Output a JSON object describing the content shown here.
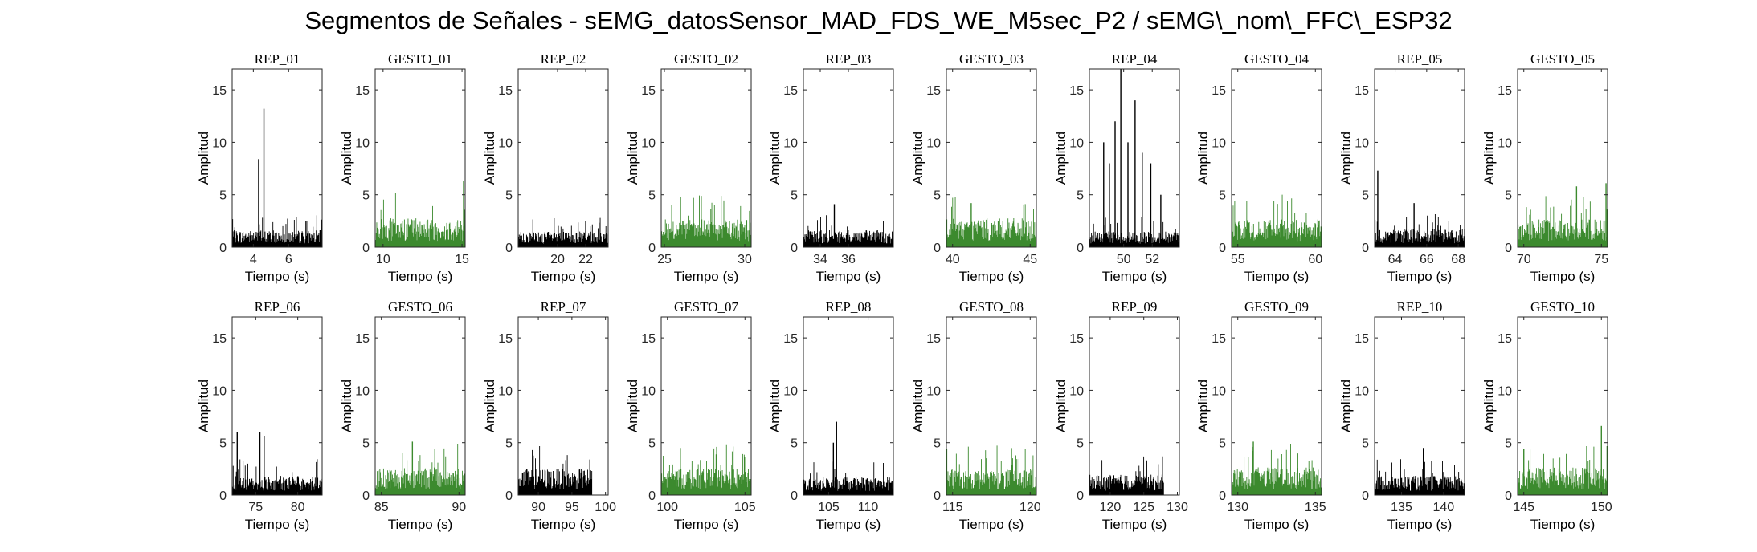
{
  "figure": {
    "title": "Segmentos de Señales - sEMG_datosSensor_MAD_FDS_WE_M5sec_P2 / sEMG\\_nom\\_FFC\\_ESP32"
  },
  "colors": {
    "rep": "#000000",
    "gesto": "#3c8a2e",
    "axis": "#262626"
  },
  "chart_data": [
    {
      "type": "bar",
      "title": "REP_01",
      "xlabel": "Tiempo (s)",
      "ylabel": "Amplitud",
      "xlim": [
        2.8,
        7.9
      ],
      "ylim": [
        0,
        17
      ],
      "xticks": [
        4,
        6
      ],
      "yticks": [
        0,
        5,
        10,
        15
      ],
      "series": [
        {
          "x": [
            2.8,
            7.9
          ],
          "values": [
            1.4,
            1.4
          ]
        }
      ],
      "peaks": [
        {
          "x": 4.3,
          "y": 8.4
        },
        {
          "x": 4.6,
          "y": 13.2
        }
      ],
      "end": 7.9,
      "kind": "rep"
    },
    {
      "type": "bar",
      "title": "GESTO_01",
      "xlabel": "Tiempo (s)",
      "ylabel": "Amplitud",
      "xlim": [
        9.5,
        15.2
      ],
      "ylim": [
        0,
        17
      ],
      "xticks": [
        10,
        15
      ],
      "yticks": [
        0,
        5,
        10,
        15
      ],
      "series": [
        {
          "x": [
            9.5,
            15.2
          ],
          "values": [
            2.4,
            2.4
          ]
        }
      ],
      "peaks": [
        {
          "x": 15.1,
          "y": 6.3
        }
      ],
      "end": 15.2,
      "kind": "gesto"
    },
    {
      "type": "bar",
      "title": "REP_02",
      "xlabel": "Tiempo (s)",
      "ylabel": "Amplitud",
      "xlim": [
        17.2,
        23.6
      ],
      "ylim": [
        0,
        17
      ],
      "xticks": [
        20,
        22
      ],
      "yticks": [
        0,
        5,
        10,
        15
      ],
      "series": [
        {
          "x": [
            17.2,
            23.6
          ],
          "values": [
            1.3,
            1.3
          ]
        }
      ],
      "peaks": [],
      "end": 23.6,
      "kind": "rep"
    },
    {
      "type": "bar",
      "title": "GESTO_02",
      "xlabel": "Tiempo (s)",
      "ylabel": "Amplitud",
      "xlim": [
        24.8,
        30.4
      ],
      "ylim": [
        0,
        17
      ],
      "xticks": [
        25,
        30
      ],
      "yticks": [
        0,
        5,
        10,
        15
      ],
      "series": [
        {
          "x": [
            24.8,
            30.4
          ],
          "values": [
            2.3,
            2.3
          ]
        }
      ],
      "peaks": [
        {
          "x": 26.0,
          "y": 4.8
        }
      ],
      "end": 30.4,
      "kind": "gesto"
    },
    {
      "type": "bar",
      "title": "REP_03",
      "xlabel": "Tiempo (s)",
      "ylabel": "Amplitud",
      "xlim": [
        32.8,
        39.2
      ],
      "ylim": [
        0,
        17
      ],
      "xticks": [
        34,
        36
      ],
      "yticks": [
        0,
        5,
        10,
        15
      ],
      "series": [
        {
          "x": [
            32.8,
            39.2
          ],
          "values": [
            1.4,
            1.4
          ]
        }
      ],
      "peaks": [
        {
          "x": 35.0,
          "y": 4.1
        }
      ],
      "end": 39.2,
      "kind": "rep"
    },
    {
      "type": "bar",
      "title": "GESTO_03",
      "xlabel": "Tiempo (s)",
      "ylabel": "Amplitud",
      "xlim": [
        39.6,
        45.4
      ],
      "ylim": [
        0,
        17
      ],
      "xticks": [
        40,
        45
      ],
      "yticks": [
        0,
        5,
        10,
        15
      ],
      "series": [
        {
          "x": [
            39.6,
            45.4
          ],
          "values": [
            2.4,
            2.4
          ]
        }
      ],
      "peaks": [
        {
          "x": 41.2,
          "y": 4.2
        }
      ],
      "end": 45.4,
      "kind": "gesto"
    },
    {
      "type": "bar",
      "title": "REP_04",
      "xlabel": "Tiempo (s)",
      "ylabel": "Amplitud",
      "xlim": [
        47.6,
        53.9
      ],
      "ylim": [
        0,
        17
      ],
      "xticks": [
        50,
        52
      ],
      "yticks": [
        0,
        5,
        10,
        15
      ],
      "series": [
        {
          "x": [
            47.6,
            53.9
          ],
          "values": [
            1.3,
            1.3
          ]
        }
      ],
      "peaks": [
        {
          "x": 48.6,
          "y": 10.0
        },
        {
          "x": 49.0,
          "y": 8.0
        },
        {
          "x": 49.4,
          "y": 12.0
        },
        {
          "x": 49.8,
          "y": 17.0
        },
        {
          "x": 50.3,
          "y": 10.0
        },
        {
          "x": 50.8,
          "y": 14.0
        },
        {
          "x": 51.3,
          "y": 9.0
        },
        {
          "x": 51.9,
          "y": 8.0
        },
        {
          "x": 52.6,
          "y": 5.0
        }
      ],
      "end": 53.9,
      "kind": "rep"
    },
    {
      "type": "bar",
      "title": "GESTO_04",
      "xlabel": "Tiempo (s)",
      "ylabel": "Amplitud",
      "xlim": [
        54.6,
        60.4
      ],
      "ylim": [
        0,
        17
      ],
      "xticks": [
        55,
        60
      ],
      "yticks": [
        0,
        5,
        10,
        15
      ],
      "series": [
        {
          "x": [
            54.6,
            60.4
          ],
          "values": [
            2.3,
            2.3
          ]
        }
      ],
      "peaks": [],
      "end": 60.4,
      "kind": "gesto"
    },
    {
      "type": "bar",
      "title": "REP_05",
      "xlabel": "Tiempo (s)",
      "ylabel": "Amplitud",
      "xlim": [
        62.7,
        68.4
      ],
      "ylim": [
        0,
        17
      ],
      "xticks": [
        64,
        66,
        68
      ],
      "yticks": [
        0,
        5,
        10,
        15
      ],
      "series": [
        {
          "x": [
            62.7,
            68.4
          ],
          "values": [
            1.5,
            1.5
          ]
        }
      ],
      "peaks": [
        {
          "x": 62.9,
          "y": 7.3
        },
        {
          "x": 65.2,
          "y": 4.2
        }
      ],
      "end": 68.4,
      "kind": "rep"
    },
    {
      "type": "bar",
      "title": "GESTO_05",
      "xlabel": "Tiempo (s)",
      "ylabel": "Amplitud",
      "xlim": [
        69.6,
        75.4
      ],
      "ylim": [
        0,
        17
      ],
      "xticks": [
        70,
        75
      ],
      "yticks": [
        0,
        5,
        10,
        15
      ],
      "series": [
        {
          "x": [
            69.6,
            75.4
          ],
          "values": [
            2.3,
            2.3
          ]
        }
      ],
      "peaks": [
        {
          "x": 73.4,
          "y": 5.8
        },
        {
          "x": 75.3,
          "y": 6.1
        }
      ],
      "end": 75.4,
      "kind": "gesto"
    },
    {
      "type": "bar",
      "title": "REP_06",
      "xlabel": "Tiempo (s)",
      "ylabel": "Amplitud",
      "xlim": [
        72.2,
        82.9
      ],
      "ylim": [
        0,
        17
      ],
      "xticks": [
        75,
        80
      ],
      "yticks": [
        0,
        5,
        10,
        15
      ],
      "series": [
        {
          "x": [
            72.2,
            82.9
          ],
          "values": [
            1.6,
            1.6
          ]
        }
      ],
      "peaks": [
        {
          "x": 72.8,
          "y": 6.0
        },
        {
          "x": 75.5,
          "y": 6.0
        },
        {
          "x": 76.0,
          "y": 5.6
        }
      ],
      "end": 82.9,
      "kind": "rep"
    },
    {
      "type": "bar",
      "title": "GESTO_06",
      "xlabel": "Tiempo (s)",
      "ylabel": "Amplitud",
      "xlim": [
        84.6,
        90.4
      ],
      "ylim": [
        0,
        17
      ],
      "xticks": [
        85,
        90
      ],
      "yticks": [
        0,
        5,
        10,
        15
      ],
      "series": [
        {
          "x": [
            84.6,
            90.4
          ],
          "values": [
            2.3,
            2.3
          ]
        }
      ],
      "peaks": [
        {
          "x": 87.0,
          "y": 5.1
        }
      ],
      "end": 90.4,
      "kind": "gesto"
    },
    {
      "type": "bar",
      "title": "REP_07",
      "xlabel": "Tiempo (s)",
      "ylabel": "Amplitud",
      "xlim": [
        87.0,
        100.4
      ],
      "ylim": [
        0,
        17
      ],
      "xticks": [
        90,
        95,
        100
      ],
      "yticks": [
        0,
        5,
        10,
        15
      ],
      "series": [
        {
          "x": [
            87.0,
            98.0
          ],
          "values": [
            2.2,
            2.2
          ]
        }
      ],
      "peaks": [],
      "end": 98.0,
      "kind": "rep"
    },
    {
      "type": "bar",
      "title": "GESTO_07",
      "xlabel": "Tiempo (s)",
      "ylabel": "Amplitud",
      "xlim": [
        99.6,
        105.4
      ],
      "ylim": [
        0,
        17
      ],
      "xticks": [
        100,
        105
      ],
      "yticks": [
        0,
        5,
        10,
        15
      ],
      "series": [
        {
          "x": [
            99.6,
            105.4
          ],
          "values": [
            2.2,
            2.2
          ]
        }
      ],
      "peaks": [],
      "end": 105.4,
      "kind": "gesto"
    },
    {
      "type": "bar",
      "title": "REP_08",
      "xlabel": "Tiempo (s)",
      "ylabel": "Amplitud",
      "xlim": [
        101.8,
        113.2
      ],
      "ylim": [
        0,
        17
      ],
      "xticks": [
        105,
        110
      ],
      "yticks": [
        0,
        5,
        10,
        15
      ],
      "series": [
        {
          "x": [
            101.8,
            113.2
          ],
          "values": [
            1.5,
            1.5
          ]
        }
      ],
      "peaks": [
        {
          "x": 106.0,
          "y": 7.0
        },
        {
          "x": 105.6,
          "y": 5.0
        }
      ],
      "end": 113.2,
      "kind": "rep"
    },
    {
      "type": "bar",
      "title": "GESTO_08",
      "xlabel": "Tiempo (s)",
      "ylabel": "Amplitud",
      "xlim": [
        114.6,
        120.4
      ],
      "ylim": [
        0,
        17
      ],
      "xticks": [
        115,
        120
      ],
      "yticks": [
        0,
        5,
        10,
        15
      ],
      "series": [
        {
          "x": [
            114.6,
            120.4
          ],
          "values": [
            2.2,
            2.2
          ]
        }
      ],
      "peaks": [],
      "end": 120.4,
      "kind": "gesto"
    },
    {
      "type": "bar",
      "title": "REP_09",
      "xlabel": "Tiempo (s)",
      "ylabel": "Amplitud",
      "xlim": [
        116.9,
        130.3
      ],
      "ylim": [
        0,
        17
      ],
      "xticks": [
        120,
        125,
        130
      ],
      "yticks": [
        0,
        5,
        10,
        15
      ],
      "series": [
        {
          "x": [
            116.9,
            128.0
          ],
          "values": [
            1.7,
            1.7
          ]
        }
      ],
      "peaks": [],
      "end": 128.0,
      "kind": "rep"
    },
    {
      "type": "bar",
      "title": "GESTO_09",
      "xlabel": "Tiempo (s)",
      "ylabel": "Amplitud",
      "xlim": [
        129.6,
        135.4
      ],
      "ylim": [
        0,
        17
      ],
      "xticks": [
        130,
        135
      ],
      "yticks": [
        0,
        5,
        10,
        15
      ],
      "series": [
        {
          "x": [
            129.6,
            135.4
          ],
          "values": [
            2.3,
            2.3
          ]
        }
      ],
      "peaks": [
        {
          "x": 131.0,
          "y": 5.1
        }
      ],
      "end": 135.4,
      "kind": "gesto"
    },
    {
      "type": "bar",
      "title": "REP_10",
      "xlabel": "Tiempo (s)",
      "ylabel": "Amplitud",
      "xlim": [
        131.8,
        142.5
      ],
      "ylim": [
        0,
        17
      ],
      "xticks": [
        135,
        140
      ],
      "yticks": [
        0,
        5,
        10,
        15
      ],
      "series": [
        {
          "x": [
            131.8,
            142.5
          ],
          "values": [
            1.6,
            1.6
          ]
        }
      ],
      "peaks": [
        {
          "x": 137.6,
          "y": 4.5
        }
      ],
      "end": 142.5,
      "kind": "rep"
    },
    {
      "type": "bar",
      "title": "GESTO_10",
      "xlabel": "Tiempo (s)",
      "ylabel": "Amplitud",
      "xlim": [
        144.6,
        150.4
      ],
      "ylim": [
        0,
        17
      ],
      "xticks": [
        145,
        150
      ],
      "yticks": [
        0,
        5,
        10,
        15
      ],
      "series": [
        {
          "x": [
            144.6,
            150.4
          ],
          "values": [
            2.3,
            2.3
          ]
        }
      ],
      "peaks": [
        {
          "x": 145.0,
          "y": 4.4
        },
        {
          "x": 150.0,
          "y": 6.6
        }
      ],
      "end": 150.4,
      "kind": "gesto"
    }
  ]
}
